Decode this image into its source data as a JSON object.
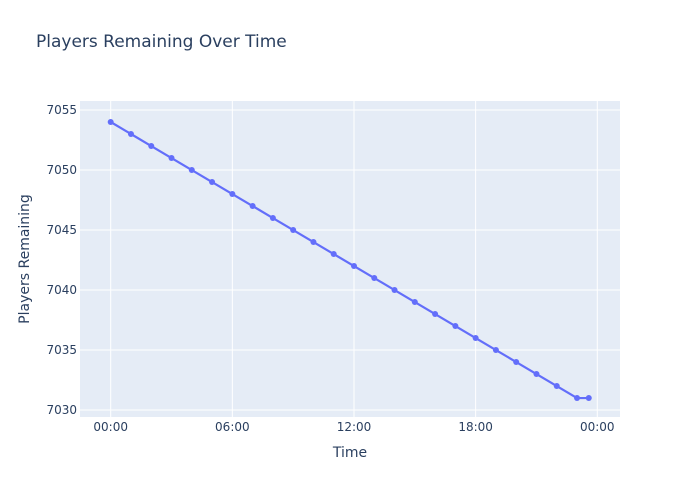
{
  "chart_data": {
    "type": "line",
    "title": "Players Remaining Over Time",
    "xlabel": "Time",
    "ylabel": "Players Remaining",
    "x": [
      "00:00",
      "01:00",
      "02:00",
      "03:00",
      "04:00",
      "05:00",
      "06:00",
      "07:00",
      "08:00",
      "09:00",
      "10:00",
      "11:00",
      "12:00",
      "13:00",
      "14:00",
      "15:00",
      "16:00",
      "17:00",
      "18:00",
      "19:00",
      "20:00",
      "21:00",
      "22:00",
      "23:00",
      "23:35"
    ],
    "x_hours": [
      0,
      1,
      2,
      3,
      4,
      5,
      6,
      7,
      8,
      9,
      10,
      11,
      12,
      13,
      14,
      15,
      16,
      17,
      18,
      19,
      20,
      21,
      22,
      23,
      23.58
    ],
    "values": [
      7054,
      7053,
      7052,
      7051,
      7050,
      7049,
      7048,
      7047,
      7046,
      7045,
      7044,
      7043,
      7042,
      7041,
      7040,
      7039,
      7038,
      7037,
      7036,
      7035,
      7034,
      7033,
      7032,
      7031,
      7031
    ],
    "series_name": "Players Remaining",
    "xticks": {
      "labels": [
        "00:00",
        "06:00",
        "12:00",
        "18:00",
        "00:00"
      ],
      "hours": [
        0,
        6,
        12,
        18,
        24
      ]
    },
    "yticks": [
      7030,
      7035,
      7040,
      7045,
      7050,
      7055
    ],
    "x_range_hours": [
      -1.514,
      25.12
    ],
    "y_range": [
      7029.42,
      7055.75
    ],
    "grid_on": true,
    "legend": "none",
    "colors": {
      "line": "#636efa",
      "marker": "#636efa",
      "plot_bg": "#e5ecf6",
      "grid": "#ffffff",
      "text": "#2a3f5f",
      "paper_bg": "#ffffff"
    },
    "marker_size": 6,
    "line_width": 2.2
  }
}
